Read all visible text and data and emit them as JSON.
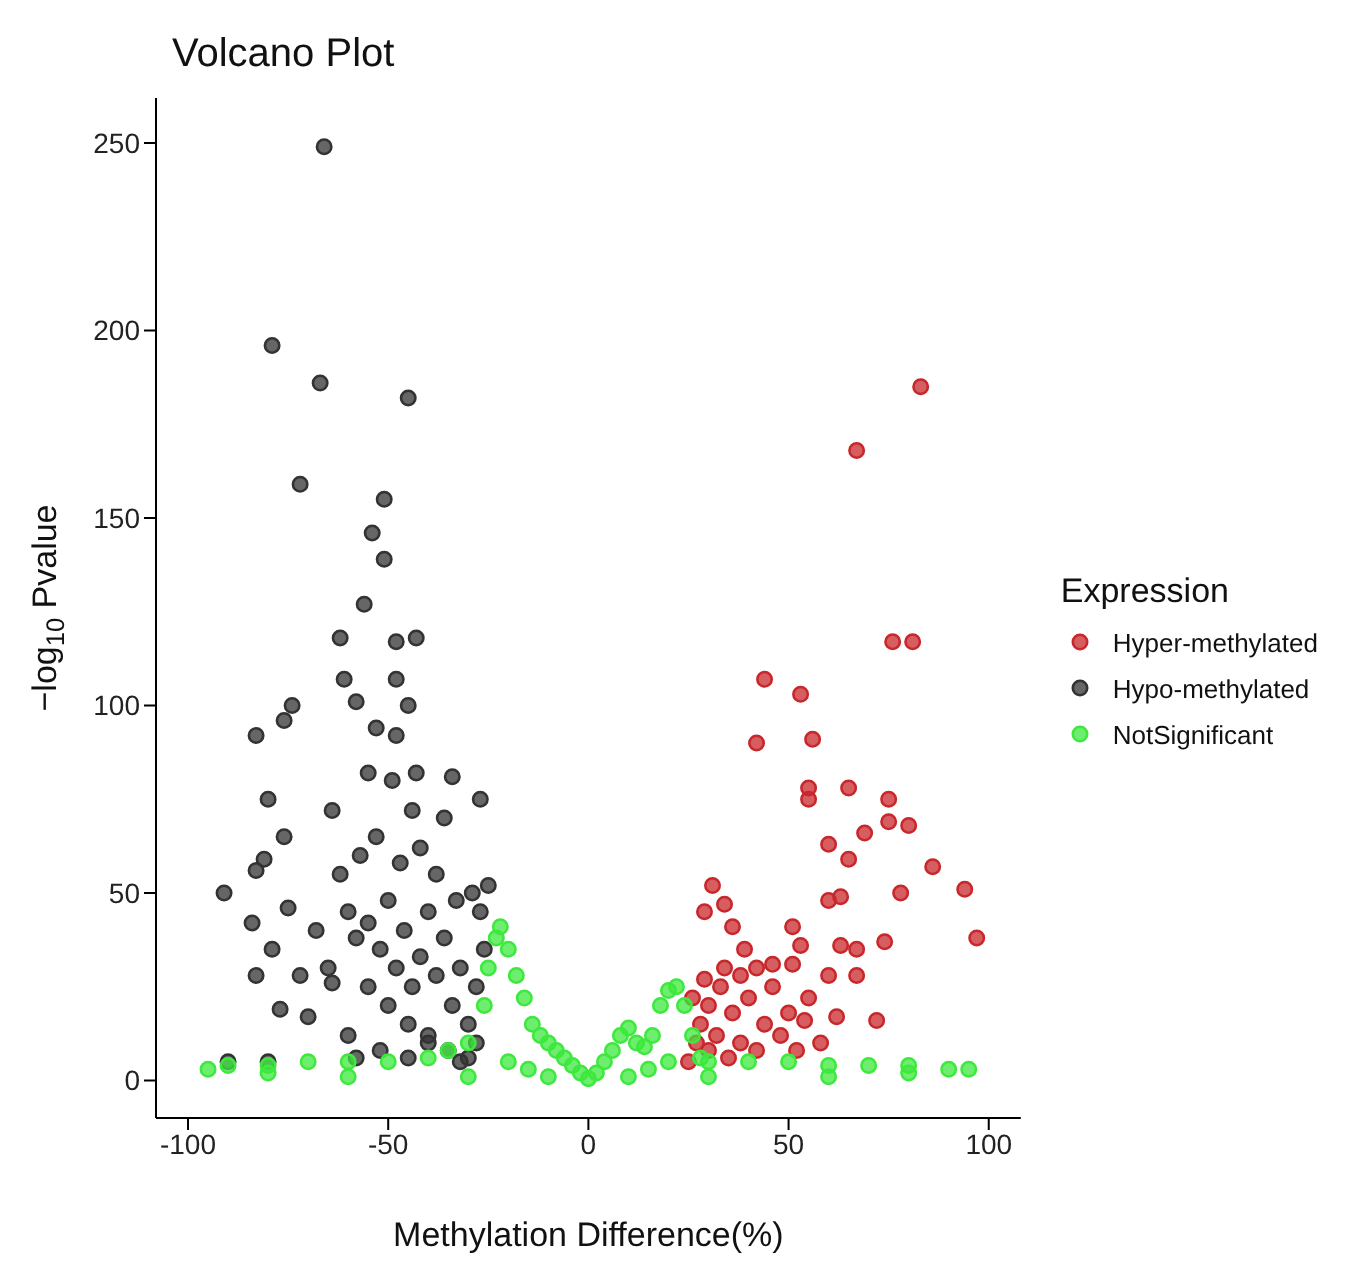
{
  "chart_data": {
    "type": "scatter",
    "title": "Volcano Plot",
    "xlabel": "Methylation Difference(%)",
    "ylabel": "−log$_{10}$ Pvalue",
    "legend_title": "Expression",
    "legend": "right",
    "marker": "circle",
    "xlim": [
      -108,
      108
    ],
    "xticks": [
      -100,
      -50,
      0,
      50,
      100
    ],
    "ylim": [
      -10,
      262
    ],
    "yticks": [
      0,
      50,
      100,
      150,
      200,
      250
    ],
    "series": [
      {
        "name": "Hyper-methylated",
        "color": "#c8282c",
        "x": [
          83,
          67,
          76,
          81,
          44,
          53,
          42,
          56,
          55,
          65,
          55,
          75,
          75,
          80,
          69,
          60,
          65,
          86,
          94,
          78,
          63,
          60,
          97,
          74,
          31,
          29,
          34,
          36,
          51,
          53,
          63,
          67,
          39,
          60,
          67,
          46,
          51,
          72,
          62,
          54,
          25,
          27,
          28,
          30,
          30,
          32,
          33,
          35,
          36,
          38,
          40,
          42,
          44,
          46,
          48,
          50,
          52,
          55,
          58,
          26,
          29,
          34,
          38,
          42
        ],
        "values": [
          185,
          168,
          117,
          117,
          107,
          103,
          90,
          91,
          78,
          78,
          75,
          75,
          69,
          68,
          66,
          63,
          59,
          57,
          51,
          50,
          49,
          48,
          38,
          37,
          52,
          45,
          47,
          41,
          41,
          36,
          36,
          35,
          35,
          28,
          28,
          31,
          31,
          16,
          17,
          16,
          5,
          10,
          15,
          8,
          20,
          12,
          25,
          6,
          18,
          10,
          22,
          8,
          15,
          25,
          12,
          18,
          8,
          22,
          10,
          22,
          27,
          30,
          28,
          30
        ]
      },
      {
        "name": "Hypo-methylated",
        "color": "#333333",
        "x": [
          -66,
          -79,
          -67,
          -45,
          -72,
          -51,
          -54,
          -51,
          -56,
          -62,
          -48,
          -43,
          -83,
          -76,
          -74,
          -61,
          -58,
          -48,
          -45,
          -53,
          -48,
          -80,
          -76,
          -64,
          -55,
          -43,
          -34,
          -27,
          -83,
          -91,
          -81,
          -75,
          -84,
          -79,
          -83,
          -77,
          -70,
          -64,
          -25,
          -60,
          -58,
          -55,
          -52,
          -50,
          -48,
          -46,
          -44,
          -42,
          -40,
          -38,
          -36,
          -34,
          -32,
          -30,
          -28,
          -26,
          -45,
          -50,
          -55,
          -40,
          -35,
          -30,
          -60,
          -65,
          -68,
          -72,
          -62,
          -57,
          -53,
          -47,
          -42,
          -38,
          -33,
          -36,
          -44,
          -49,
          -40,
          -28,
          -32,
          -45,
          -52,
          -58,
          -80,
          -90,
          -27,
          -29
        ],
        "values": [
          249,
          196,
          186,
          182,
          159,
          155,
          146,
          139,
          127,
          118,
          117,
          118,
          92,
          96,
          100,
          107,
          101,
          107,
          100,
          94,
          92,
          75,
          65,
          72,
          82,
          82,
          81,
          75,
          56,
          50,
          59,
          46,
          42,
          35,
          28,
          19,
          17,
          26,
          52,
          45,
          38,
          42,
          35,
          48,
          30,
          40,
          25,
          33,
          45,
          28,
          38,
          20,
          30,
          15,
          25,
          35,
          15,
          20,
          25,
          10,
          8,
          6,
          12,
          30,
          40,
          28,
          55,
          60,
          65,
          58,
          62,
          55,
          48,
          70,
          72,
          80,
          12,
          10,
          5,
          6,
          8,
          6,
          5,
          5,
          45,
          50
        ]
      },
      {
        "name": "NotSignificant",
        "color": "#3ee83e",
        "x": [
          -95,
          -90,
          -80,
          -70,
          -60,
          -50,
          -40,
          -35,
          -30,
          -26,
          -25,
          -23,
          -22,
          -20,
          -18,
          -16,
          -14,
          -12,
          -10,
          -8,
          -6,
          -4,
          -2,
          0,
          2,
          4,
          6,
          8,
          10,
          12,
          14,
          16,
          18,
          20,
          22,
          24,
          26,
          28,
          30,
          40,
          50,
          60,
          70,
          80,
          90,
          95,
          -60,
          -30,
          -10,
          10,
          30,
          60,
          -80,
          80,
          -20,
          20,
          -15,
          15
        ],
        "values": [
          3,
          4,
          4,
          5,
          5,
          5,
          6,
          8,
          10,
          20,
          30,
          38,
          41,
          35,
          28,
          22,
          15,
          12,
          10,
          8,
          6,
          4,
          2,
          0.5,
          2,
          5,
          8,
          12,
          14,
          10,
          9,
          12,
          20,
          24,
          25,
          20,
          12,
          6,
          5,
          5,
          5,
          4,
          4,
          4,
          3,
          3,
          1,
          1,
          1,
          1,
          1,
          1,
          2,
          2,
          5,
          5,
          3,
          3
        ]
      }
    ]
  }
}
